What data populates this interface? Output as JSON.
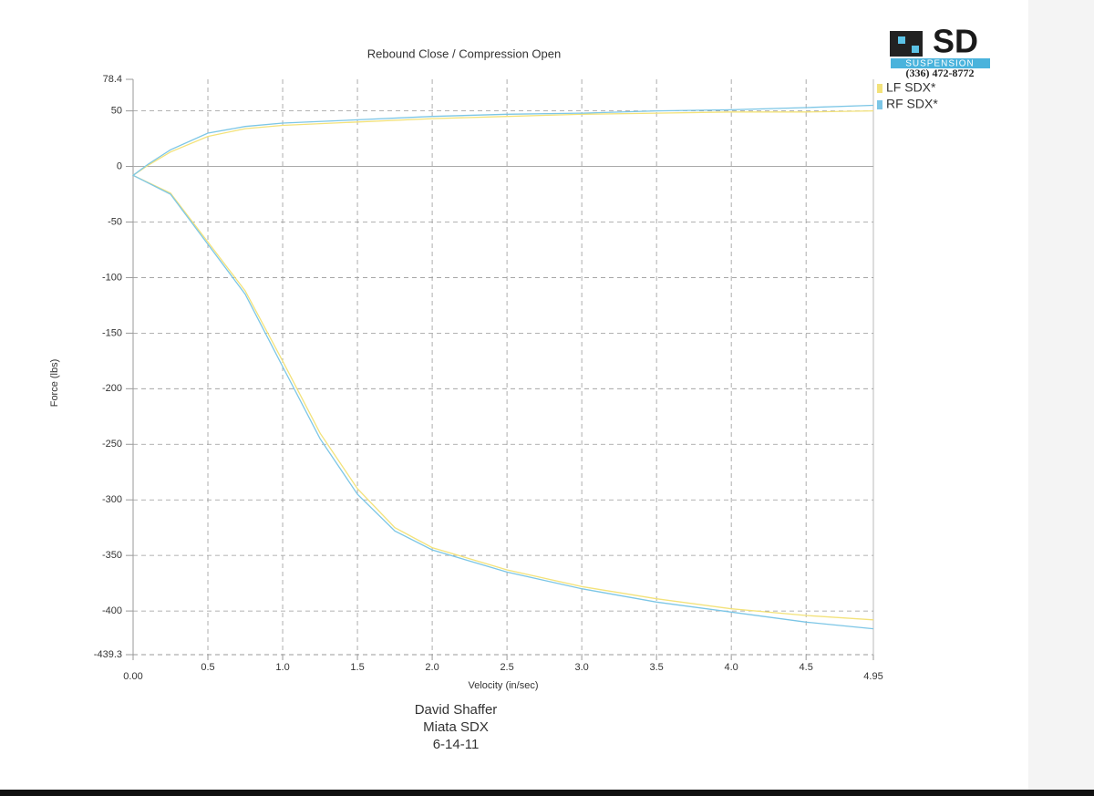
{
  "chart_data": {
    "type": "line",
    "title": "Rebound Close / Compression Open",
    "xlabel": "Velocity (in/sec)",
    "ylabel": "Force (lbs)",
    "xlim": [
      0,
      4.95
    ],
    "ylim": [
      -439.3,
      78.4
    ],
    "xticks": [
      {
        "value": 0,
        "label": "0.00"
      },
      0.5,
      {
        "value": 1,
        "label": "1.0"
      },
      1.5,
      {
        "value": 2,
        "label": "2.0"
      },
      2.5,
      {
        "value": 3,
        "label": "3.0"
      },
      3.5,
      {
        "value": 4,
        "label": "4.0"
      },
      4.5,
      4.95
    ],
    "yticks": [
      78.4,
      50,
      0,
      -50,
      -100,
      -150,
      -200,
      -250,
      -300,
      -350,
      -400,
      -439.3
    ],
    "grid": true,
    "legend": "right",
    "series": [
      {
        "name": "LF SDX*",
        "color": "#f3e27a",
        "x": [
          4.95,
          4.5,
          4.0,
          3.5,
          3.0,
          2.5,
          2.0,
          1.5,
          1.0,
          0.75,
          0.5,
          0.25,
          0.1,
          0,
          0.25,
          0.5,
          0.75,
          1.0,
          1.25,
          1.5,
          1.75,
          2.0,
          2.5,
          3.0,
          3.5,
          4.0,
          4.5,
          4.95
        ],
        "values": [
          50,
          49,
          49,
          48,
          47,
          45,
          43,
          40,
          37,
          34,
          27,
          13,
          1,
          -8,
          -24,
          -68,
          -112,
          -175,
          -240,
          -290,
          -325,
          -343,
          -363,
          -378,
          -389,
          -398,
          -404,
          -408
        ]
      },
      {
        "name": "RF SDX*",
        "color": "#7cc6e6",
        "x": [
          4.95,
          4.5,
          4.0,
          3.5,
          3.0,
          2.5,
          2.0,
          1.5,
          1.0,
          0.75,
          0.5,
          0.25,
          0.1,
          0,
          0.25,
          0.5,
          0.75,
          1.0,
          1.25,
          1.5,
          1.75,
          2.0,
          2.5,
          3.0,
          3.5,
          4.0,
          4.5,
          4.95
        ],
        "values": [
          55,
          53,
          51,
          50,
          48,
          47,
          45,
          42,
          39,
          36,
          30,
          15,
          2,
          -8,
          -25,
          -70,
          -115,
          -180,
          -245,
          -295,
          -328,
          -345,
          -365,
          -380,
          -392,
          -401,
          -410,
          -416
        ]
      }
    ],
    "notes": [
      "David Shaffer",
      "Miata SDX",
      "6-14-11"
    ],
    "logo": {
      "mark": "SD",
      "name": "SUSPENSION",
      "phone": "(336) 472-8772"
    }
  }
}
